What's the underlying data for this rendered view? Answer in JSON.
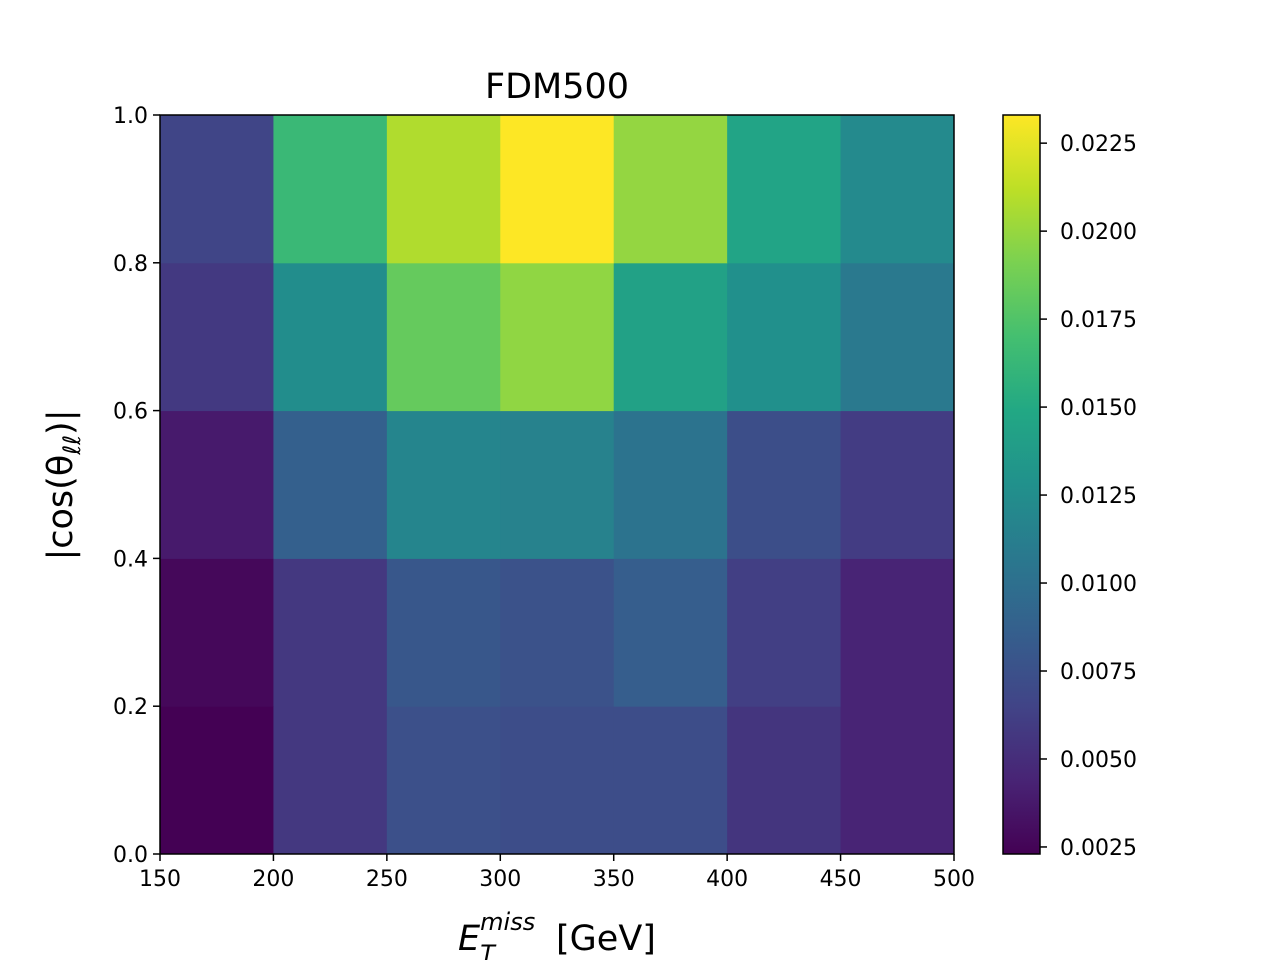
{
  "chart_data": {
    "type": "heatmap",
    "title": "FDM500",
    "xlabel": "E",
    "xlabel_sub": "T",
    "xlabel_sup": "miss",
    "xlabel_unit": " [GeV]",
    "ylabel": "|cos(θ",
    "ylabel_sub": "ℓℓ",
    "ylabel_close": ")|",
    "x_edges": [
      150,
      200,
      250,
      300,
      350,
      400,
      450,
      500
    ],
    "y_edges": [
      0.0,
      0.2,
      0.4,
      0.6,
      0.8,
      1.0
    ],
    "xlim": [
      150,
      500
    ],
    "ylim": [
      0.0,
      1.0
    ],
    "x_ticks": [
      "150",
      "200",
      "250",
      "300",
      "350",
      "400",
      "450",
      "500"
    ],
    "y_ticks": [
      "0.0",
      "0.2",
      "0.4",
      "0.6",
      "0.8",
      "1.0"
    ],
    "colormap": "viridis",
    "vmin": 0.0023,
    "vmax": 0.0233,
    "colorbar_ticks": [
      "0.0025",
      "0.0050",
      "0.0075",
      "0.0100",
      "0.0125",
      "0.0150",
      "0.0175",
      "0.0200",
      "0.0225"
    ],
    "colorbar_tick_values": [
      0.0025,
      0.005,
      0.0075,
      0.01,
      0.0125,
      0.015,
      0.0175,
      0.02,
      0.0225
    ],
    "values": [
      [
        0.0023,
        0.0057,
        0.0074,
        0.0072,
        0.0072,
        0.0055,
        0.0044
      ],
      [
        0.0027,
        0.0057,
        0.008,
        0.0076,
        0.0085,
        0.0062,
        0.0044
      ],
      [
        0.0038,
        0.0087,
        0.0118,
        0.0115,
        0.0103,
        0.0073,
        0.006
      ],
      [
        0.0058,
        0.0125,
        0.0183,
        0.0198,
        0.0143,
        0.0127,
        0.0108
      ],
      [
        0.0066,
        0.0164,
        0.0208,
        0.0233,
        0.0199,
        0.0145,
        0.0122
      ]
    ]
  }
}
